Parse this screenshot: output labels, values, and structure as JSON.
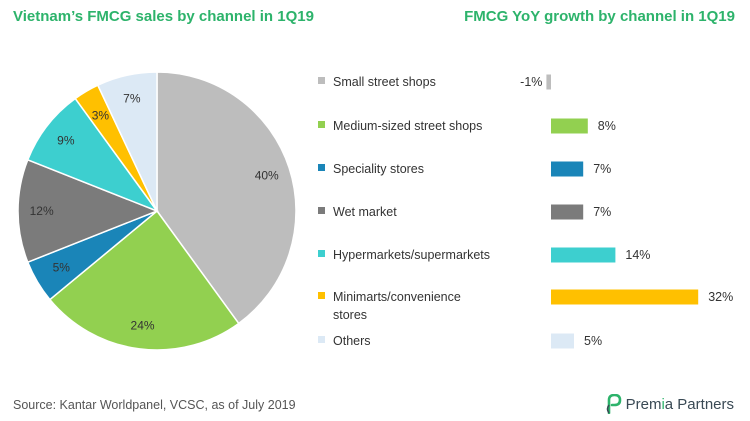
{
  "titles": {
    "left": "Vietnam’s FMCG sales by channel in 1Q19",
    "right": "FMCG YoY growth by channel in 1Q19"
  },
  "footer": {
    "source": "Source: Kantar Worldpanel, VCSC, as of July 2019"
  },
  "brand": {
    "name_part1": "Prem",
    "name_alpha": "i",
    "name_part2": "a Partners",
    "icon": "leaf-p-logo"
  },
  "chart_data": [
    {
      "type": "pie",
      "title": "Vietnam’s FMCG sales by channel in 1Q19",
      "categories": [
        "Small street shops",
        "Medium-sized street shops",
        "Speciality stores",
        "Wet market",
        "Hypermarkets/supermarkets",
        "Minimarts/convenience stores",
        "Others"
      ],
      "values": [
        40,
        24,
        5,
        12,
        9,
        3,
        7
      ],
      "labels": [
        "40%",
        "24%",
        "5%",
        "12%",
        "9%",
        "3%",
        "7%"
      ],
      "colors": [
        "#bdbdbd",
        "#92d050",
        "#1a85b8",
        "#7b7b7b",
        "#3dcfcf",
        "#ffc000",
        "#dce9f5"
      ]
    },
    {
      "type": "bar",
      "orientation": "horizontal",
      "title": "FMCG YoY growth by channel in 1Q19",
      "categories": [
        "Small street shops",
        "Medium-sized street shops",
        "Speciality stores",
        "Wet market",
        "Hypermarkets/supermarkets",
        "Minimarts/convenience stores",
        "Others"
      ],
      "legend_lines": [
        [
          "Small street shops"
        ],
        [
          "Medium-sized street shops"
        ],
        [
          "Speciality stores"
        ],
        [
          "Wet market"
        ],
        [
          "Hypermarkets/supermarkets"
        ],
        [
          "Minimarts/convenience",
          "stores"
        ],
        [
          "Others"
        ]
      ],
      "values": [
        -1,
        8,
        7,
        7,
        14,
        32,
        5
      ],
      "labels": [
        "-1%",
        "8%",
        "7%",
        "7%",
        "14%",
        "32%",
        "5%"
      ],
      "colors": [
        "#bdbdbd",
        "#92d050",
        "#1a85b8",
        "#7b7b7b",
        "#3dcfcf",
        "#ffc000",
        "#dce9f5"
      ],
      "unit": "%"
    }
  ]
}
